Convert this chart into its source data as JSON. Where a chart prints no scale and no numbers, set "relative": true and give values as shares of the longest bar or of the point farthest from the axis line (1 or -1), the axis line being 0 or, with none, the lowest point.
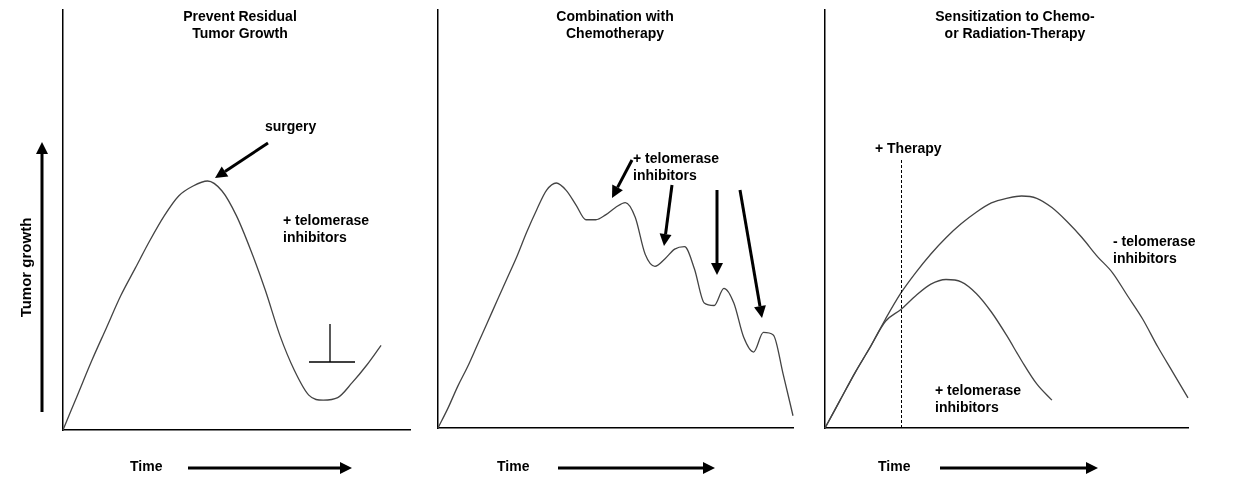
{
  "chart_data": [
    {
      "type": "line",
      "title": "Prevent Residual\nTumor Growth",
      "xlabel": "Time",
      "ylabel": "Tumor growth",
      "relative": true,
      "marker": "none",
      "categories": [
        null,
        null,
        null,
        null,
        null,
        null,
        null,
        null,
        null,
        null,
        null,
        null,
        null,
        null,
        null,
        null,
        null,
        null,
        null,
        null,
        null,
        null,
        null,
        null,
        null
      ],
      "series": [
        {
          "color": "#444444",
          "values": [
            0,
            0.14,
            0.28,
            0.41,
            0.54,
            0.65,
            0.76,
            0.86,
            0.94,
            0.98,
            1,
            0.96,
            0.86,
            0.72,
            0.56,
            0.38,
            0.24,
            0.14,
            0.12,
            0.13,
            0.19,
            0.26,
            0.34,
            null,
            null
          ]
        }
      ],
      "annotations": [
        "surgery",
        "+ telomerase inhibitors"
      ]
    },
    {
      "type": "line",
      "title": "Combination with\nChemotherapy",
      "xlabel": "Time",
      "relative": true,
      "marker": "none",
      "categories": [
        null,
        null,
        null,
        null,
        null,
        null,
        null,
        null,
        null,
        null,
        null,
        null,
        null,
        null,
        null,
        null,
        null,
        null,
        null,
        null,
        null,
        null,
        null,
        null,
        null,
        null,
        null,
        null,
        null,
        null,
        null,
        null,
        null,
        null,
        null,
        null,
        null
      ],
      "series": [
        {
          "color": "#444444",
          "values": [
            0,
            0.08,
            0.17,
            0.25,
            0.34,
            0.43,
            0.52,
            0.61,
            0.7,
            0.8,
            0.89,
            0.97,
            1,
            0.97,
            0.91,
            0.85,
            0.85,
            0.87,
            0.9,
            0.92,
            0.86,
            0.71,
            0.66,
            0.69,
            0.73,
            0.74,
            0.65,
            0.51,
            0.5,
            0.57,
            0.51,
            0.37,
            0.31,
            0.39,
            0.38,
            0.22,
            0.05
          ]
        }
      ],
      "annotations": [
        "+ telomerase inhibitors"
      ]
    },
    {
      "type": "line",
      "title": "Sensitization to Chemo-\nor Radiation-Therapy",
      "xlabel": "Time",
      "relative": true,
      "marker": "none",
      "categories": [
        null,
        null,
        null,
        null,
        null,
        null,
        null,
        null,
        null,
        null,
        null,
        null,
        null,
        null,
        null,
        null,
        null,
        null,
        null,
        null,
        null,
        null,
        null,
        null,
        null
      ],
      "series": [
        {
          "name": "- telomerase inhibitors",
          "color": "#444444",
          "values": [
            0,
            0.12,
            0.24,
            0.35,
            0.47,
            0.58,
            0.67,
            0.75,
            0.82,
            0.88,
            0.93,
            0.97,
            0.99,
            1,
            0.99,
            0.95,
            0.89,
            0.82,
            0.74,
            0.67,
            0.57,
            0.47,
            0.35,
            0.24,
            0.13
          ]
        },
        {
          "name": "+ telomerase inhibitors",
          "color": "#444444",
          "values": [
            0,
            0.12,
            0.24,
            0.35,
            0.46,
            0.51,
            0.57,
            0.62,
            0.64,
            0.63,
            0.58,
            0.5,
            0.4,
            0.29,
            0.19,
            0.12,
            null,
            null,
            null,
            null,
            null,
            null,
            null,
            null,
            null
          ]
        }
      ],
      "annotations": [
        "+ Therapy"
      ]
    }
  ]
}
